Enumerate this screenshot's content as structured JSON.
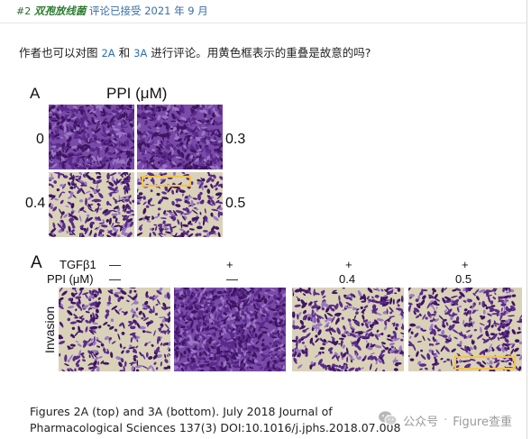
{
  "header": {
    "number": "#2",
    "user": "双孢放线菌",
    "action": "评论已接受",
    "year": "2021",
    "year_suffix": "年",
    "month": "9",
    "month_suffix": "月"
  },
  "question": {
    "p1": "作者也可以对图 ",
    "fig1": "2A",
    "p2": " 和 ",
    "fig2": "3A",
    "p3": " 进行评论。用黄色框表示的重叠是故意的吗?"
  },
  "figure_top": {
    "label": "A",
    "title": "PPI (μM)",
    "d0": "0",
    "d1": "0.3",
    "d2": "0.4",
    "d3": "0.5"
  },
  "figure_bottom": {
    "label": "A",
    "row1_label": "TGFβ1",
    "row2_label": "PPI (μM)",
    "row1": [
      "—",
      "+",
      "+",
      "+"
    ],
    "row2": [
      "—",
      "—",
      "0.4",
      "0.5"
    ],
    "side_label": "Invasion"
  },
  "caption": {
    "line1": "Figures 2A (top) and 3A (bottom). July 2018 Journal of",
    "line2": "Pharmacological Sciences 137(3) DOI:10.1016/j.jphs.2018.07.008"
  },
  "watermark": {
    "text1": "公众号",
    "sep": "·",
    "text2": "Figure查重"
  },
  "colors": {
    "stain": "#5a2a8a",
    "stain_dark": "#3d1560",
    "background": "#d9d2b8",
    "highlight": "#f2c34a"
  }
}
